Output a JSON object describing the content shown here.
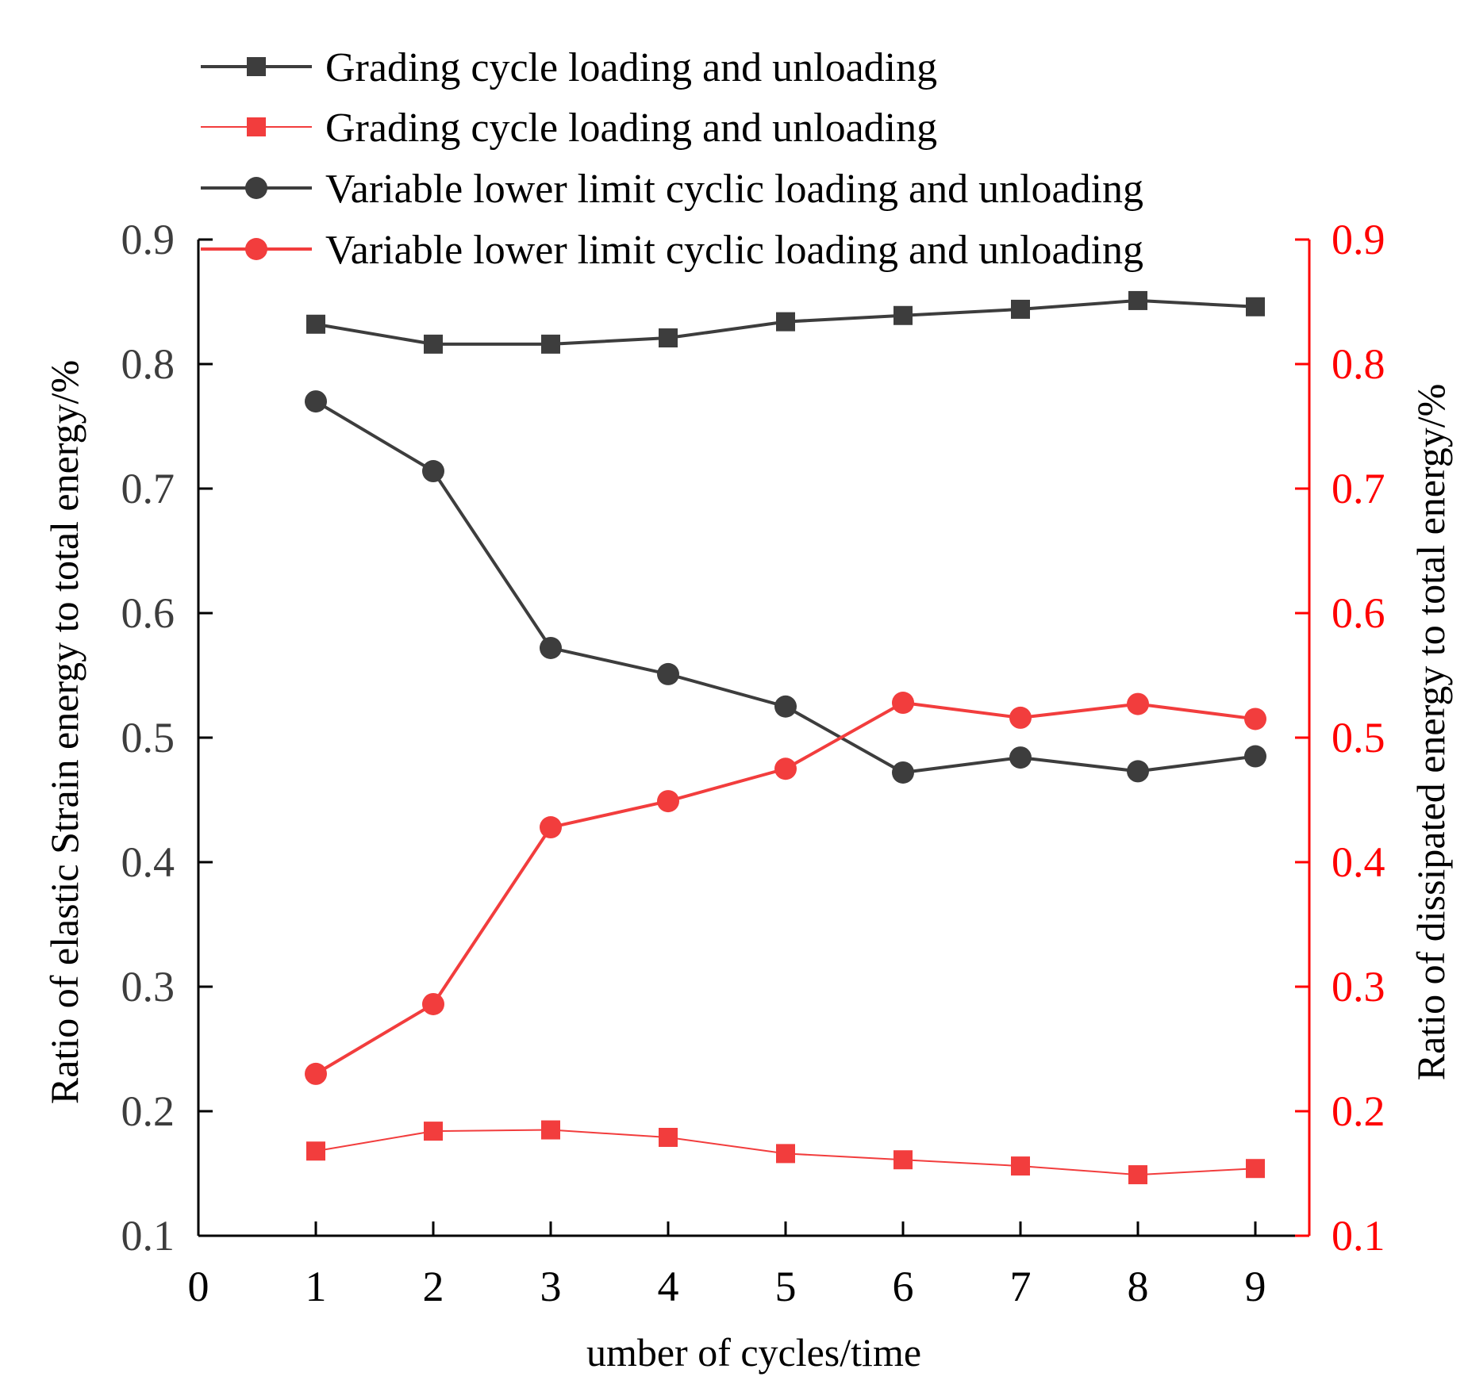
{
  "chart_data": {
    "type": "line",
    "title": "",
    "xlabel": "umber of cycles/time",
    "ylabel_left": "Ratio of elastic Strain energy to total energy/%",
    "ylabel_right": "Ratio of dissipated energy to total energy/%",
    "xlim": [
      0,
      9.4
    ],
    "ylim_left": [
      0.1,
      0.9
    ],
    "ylim_right": [
      0.1,
      0.9
    ],
    "x_ticks": [
      "0",
      "1",
      "2",
      "3",
      "4",
      "5",
      "6",
      "7",
      "8",
      "9"
    ],
    "y_ticks_left": [
      "0.1",
      "0.2",
      "0.3",
      "0.4",
      "0.5",
      "0.6",
      "0.7",
      "0.8",
      "0.9"
    ],
    "y_ticks_right": [
      "0.1",
      "0.2",
      "0.3",
      "0.4",
      "0.5",
      "0.6",
      "0.7",
      "0.8",
      "0.9"
    ],
    "grid": false,
    "legend_position": "top",
    "colors": {
      "dark": "#3d3d3d",
      "red": "#f23d3d",
      "right_axis": "#ff0000",
      "axis": "#000000"
    },
    "x": [
      1,
      2,
      3,
      4,
      5,
      6,
      7,
      8,
      9
    ],
    "series": [
      {
        "name": "Grading cycle loading and unloading",
        "axis": "left",
        "color": "#3d3d3d",
        "marker": "square",
        "values": [
          0.832,
          0.816,
          0.816,
          0.821,
          0.834,
          0.839,
          0.844,
          0.851,
          0.846
        ]
      },
      {
        "name": "Grading cycle loading and unloading",
        "axis": "right",
        "color": "#f23d3d",
        "marker": "square",
        "values": [
          0.168,
          0.184,
          0.185,
          0.179,
          0.166,
          0.161,
          0.156,
          0.149,
          0.154
        ]
      },
      {
        "name": "Variable lower limit cyclic loading and unloading",
        "axis": "left",
        "color": "#3d3d3d",
        "marker": "circle",
        "values": [
          0.77,
          0.714,
          0.572,
          0.551,
          0.525,
          0.472,
          0.484,
          0.473,
          0.485
        ]
      },
      {
        "name": "Variable lower limit cyclic loading and unloading",
        "axis": "right",
        "color": "#f23d3d",
        "marker": "circle",
        "values": [
          0.23,
          0.286,
          0.428,
          0.449,
          0.475,
          0.528,
          0.516,
          0.527,
          0.515
        ]
      }
    ]
  }
}
